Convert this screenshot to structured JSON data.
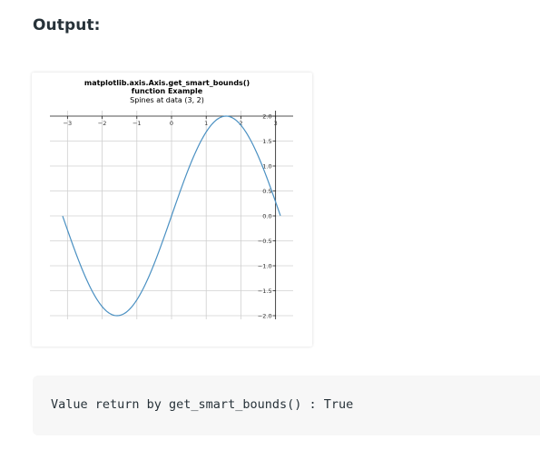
{
  "heading": "Output:",
  "code_output": "Value return by get_smart_bounds() : True",
  "chart_data": {
    "type": "line",
    "title": "matplotlib.axis.Axis.get_smart_bounds()\nfunction Example",
    "subtitle": "Spines at data (3, 2)",
    "xlim": [
      -3.14,
      3.14
    ],
    "ylim": [
      -2.0,
      2.0
    ],
    "x_ticks": [
      -3,
      -2,
      -1,
      0,
      1,
      2,
      3
    ],
    "x_tick_labels": [
      "−3",
      "−2",
      "−1",
      "0",
      "1",
      "2",
      "3"
    ],
    "y_ticks": [
      2.0,
      1.5,
      1.0,
      0.5,
      0.0,
      -0.5,
      -1.0,
      -1.5,
      -2.0
    ],
    "y_tick_labels": [
      "2.0",
      "1.5",
      "1.0",
      "0.5",
      "0.0",
      "−0.5",
      "−1.0",
      "−1.5",
      "−2.0"
    ],
    "spine_position": [
      3,
      2
    ],
    "grid": true,
    "line_color": "#4a90c2",
    "series": [
      {
        "function": "2*sin(x)",
        "x": [
          -3.14,
          -2.5,
          -2.0,
          -1.57,
          -1.0,
          -0.5,
          0.0,
          0.5,
          1.0,
          1.57,
          2.0,
          2.5,
          3.14
        ],
        "y": [
          0.0,
          -1.2,
          -1.82,
          -2.0,
          -1.68,
          -0.96,
          0.0,
          0.96,
          1.68,
          2.0,
          1.82,
          1.2,
          0.0
        ]
      }
    ]
  }
}
